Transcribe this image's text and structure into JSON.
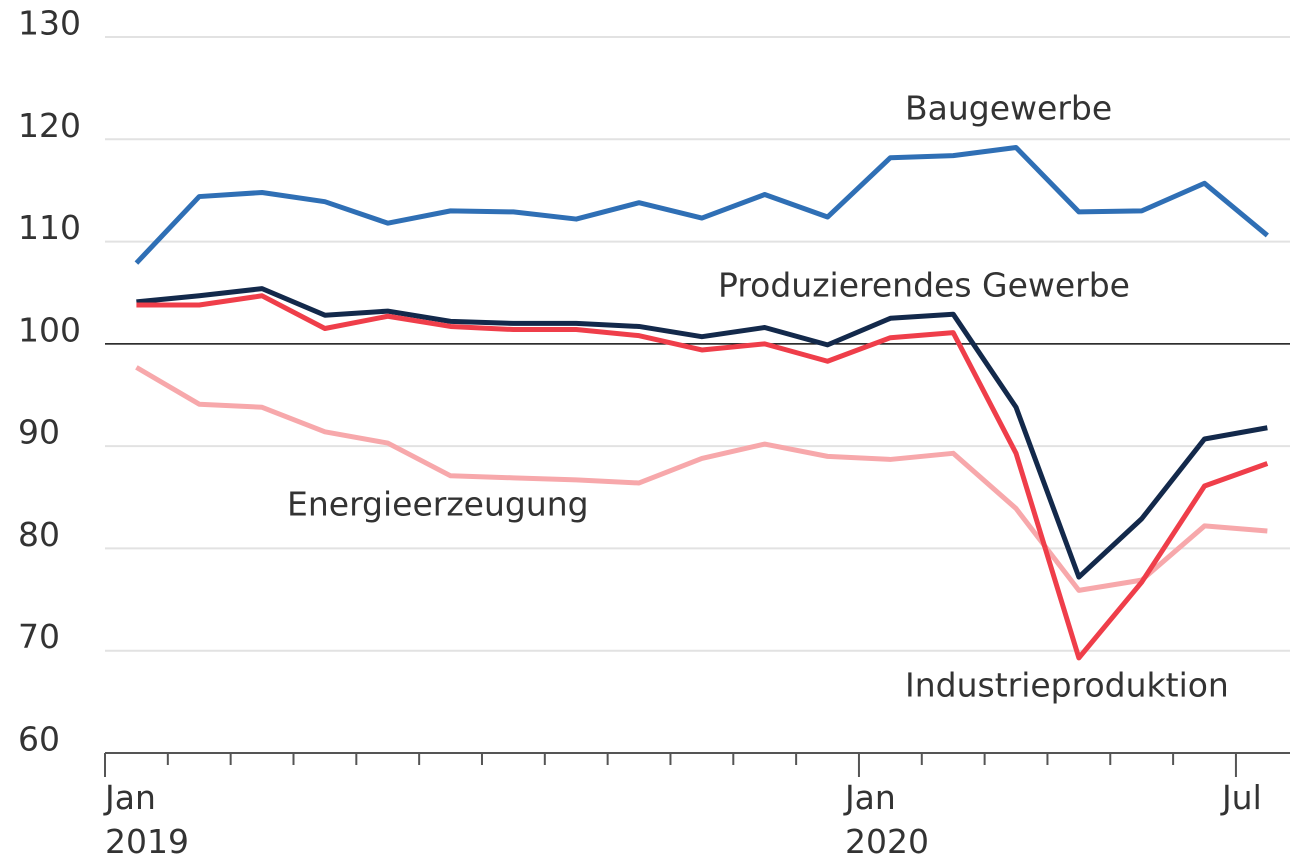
{
  "chart_data": {
    "type": "line",
    "categories": [
      "Jan\n2019",
      null,
      null,
      null,
      null,
      null,
      null,
      null,
      null,
      null,
      null,
      null,
      "Jan\n2020",
      null,
      null,
      null,
      null,
      null,
      "Jul"
    ],
    "series": [
      {
        "name": "Baugewerbe",
        "color": "#2f6fb5",
        "values": [
          107.9,
          114.4,
          114.8,
          113.9,
          111.8,
          113.0,
          112.9,
          112.2,
          113.8,
          112.3,
          114.6,
          112.4,
          118.2,
          118.4,
          119.2,
          112.9,
          113.0,
          115.7,
          110.6
        ]
      },
      {
        "name": "Produzierendes Gewerbe",
        "color": "#13294b",
        "values": [
          104.1,
          104.7,
          105.4,
          102.8,
          103.2,
          102.2,
          102.0,
          102.0,
          101.7,
          100.7,
          101.6,
          99.9,
          102.5,
          102.9,
          93.8,
          77.2,
          82.9,
          90.7,
          91.8
        ]
      },
      {
        "name": "Industrieproduktion",
        "color": "#ef3e4a",
        "values": [
          103.8,
          103.8,
          104.7,
          101.5,
          102.7,
          101.7,
          101.4,
          101.4,
          100.8,
          99.4,
          100.0,
          98.3,
          100.6,
          101.1,
          89.3,
          69.3,
          76.7,
          86.1,
          88.3
        ]
      },
      {
        "name": "Energieerzeugung",
        "color": "#f7a8ab",
        "values": [
          97.7,
          94.1,
          93.8,
          91.4,
          90.3,
          87.1,
          86.9,
          86.7,
          86.4,
          88.8,
          90.2,
          89.0,
          88.7,
          89.3,
          83.9,
          75.9,
          76.9,
          82.2,
          81.7
        ]
      }
    ],
    "ylim": [
      60,
      130
    ],
    "yticks": [
      60,
      70,
      80,
      90,
      100,
      110,
      120,
      130
    ],
    "grid": true,
    "reference_line": 100
  }
}
